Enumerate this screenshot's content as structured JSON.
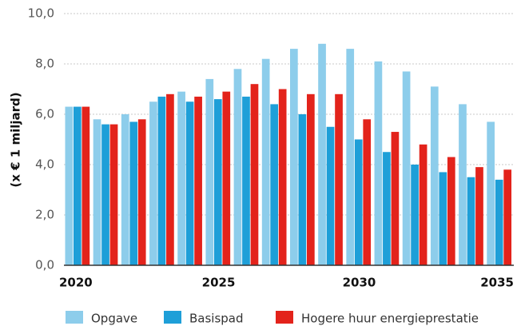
{
  "chart_data": {
    "type": "bar",
    "y_label": "(x € 1 miljard)",
    "categories": [
      "2020",
      null,
      null,
      null,
      null,
      "2025",
      null,
      null,
      null,
      null,
      "2030",
      null,
      null,
      null,
      null,
      "2035"
    ],
    "series": [
      {
        "name": "Opgave",
        "color": "#8dcdeb",
        "values": [
          6.3,
          5.8,
          6.0,
          6.5,
          6.9,
          7.4,
          7.8,
          8.2,
          8.6,
          8.8,
          8.6,
          8.1,
          7.7,
          7.1,
          6.4,
          5.7
        ]
      },
      {
        "name": "Basispad",
        "color": "#1e9fd8",
        "values": [
          6.3,
          5.6,
          5.7,
          6.7,
          6.5,
          6.6,
          6.7,
          6.4,
          6.0,
          5.5,
          5.0,
          4.5,
          4.0,
          3.7,
          3.5,
          3.4
        ]
      },
      {
        "name": "Hogere huur energieprestatie",
        "color": "#e3231b",
        "values": [
          6.3,
          5.6,
          5.8,
          6.8,
          6.7,
          6.9,
          7.2,
          7.0,
          6.8,
          6.8,
          5.8,
          5.3,
          4.8,
          4.3,
          3.9,
          3.8
        ]
      }
    ],
    "ylim": [
      0,
      10
    ],
    "yticks": [
      {
        "value": 0,
        "label": "0,0"
      },
      {
        "value": 2,
        "label": "2,0"
      },
      {
        "value": 4,
        "label": "4,0"
      },
      {
        "value": 6,
        "label": "6,0"
      },
      {
        "value": 8,
        "label": "8,0"
      },
      {
        "value": 10,
        "label": "10,0"
      }
    ],
    "grid": true,
    "legend": "bottom"
  }
}
